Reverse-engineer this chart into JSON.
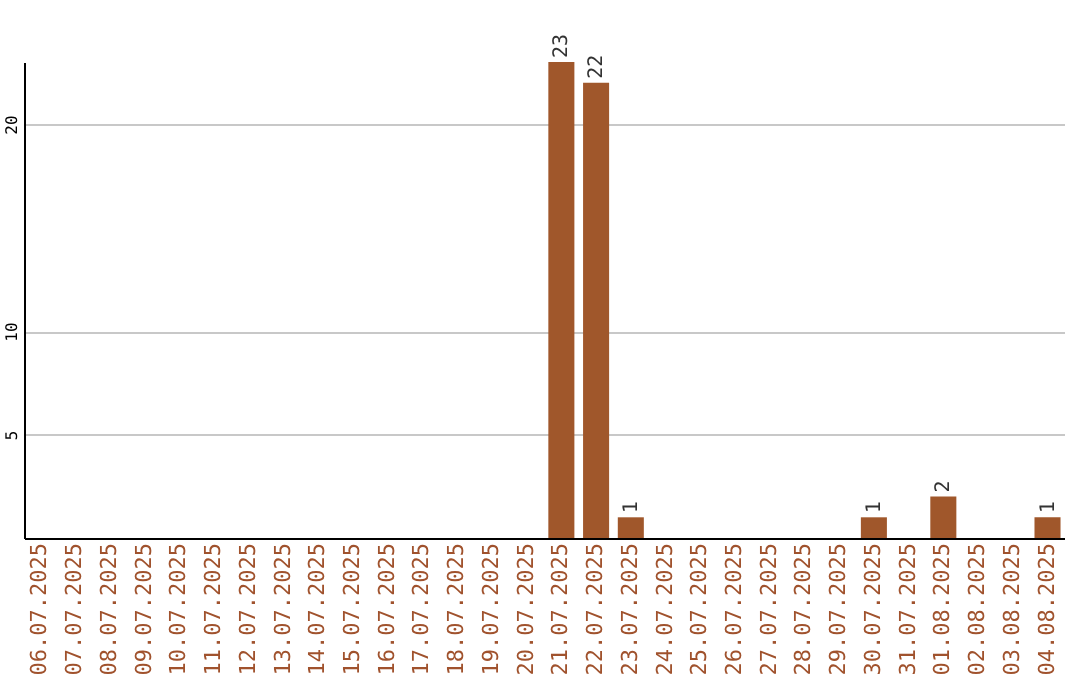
{
  "chart_data": {
    "type": "bar",
    "categories": [
      "06.07.2025",
      "07.07.2025",
      "08.07.2025",
      "09.07.2025",
      "10.07.2025",
      "11.07.2025",
      "12.07.2025",
      "13.07.2025",
      "14.07.2025",
      "15.07.2025",
      "16.07.2025",
      "17.07.2025",
      "18.07.2025",
      "19.07.2025",
      "20.07.2025",
      "21.07.2025",
      "22.07.2025",
      "23.07.2025",
      "24.07.2025",
      "25.07.2025",
      "26.07.2025",
      "27.07.2025",
      "28.07.2025",
      "29.07.2025",
      "30.07.2025",
      "31.07.2025",
      "01.08.2025",
      "02.08.2025",
      "03.08.2025",
      "04.08.2025"
    ],
    "values": [
      0,
      0,
      0,
      0,
      0,
      0,
      0,
      0,
      0,
      0,
      0,
      0,
      0,
      0,
      0,
      23,
      22,
      1,
      0,
      0,
      0,
      0,
      0,
      0,
      1,
      0,
      2,
      0,
      0,
      1
    ],
    "value_labels": [
      null,
      null,
      null,
      null,
      null,
      null,
      null,
      null,
      null,
      null,
      null,
      null,
      null,
      null,
      null,
      "23",
      "22",
      "1",
      null,
      null,
      null,
      null,
      null,
      null,
      "1",
      null,
      "2",
      null,
      null,
      "1"
    ],
    "color": "#a0572b",
    "ylim": [
      0,
      23
    ],
    "yticks": [
      5,
      10,
      20
    ],
    "grid": "y"
  }
}
